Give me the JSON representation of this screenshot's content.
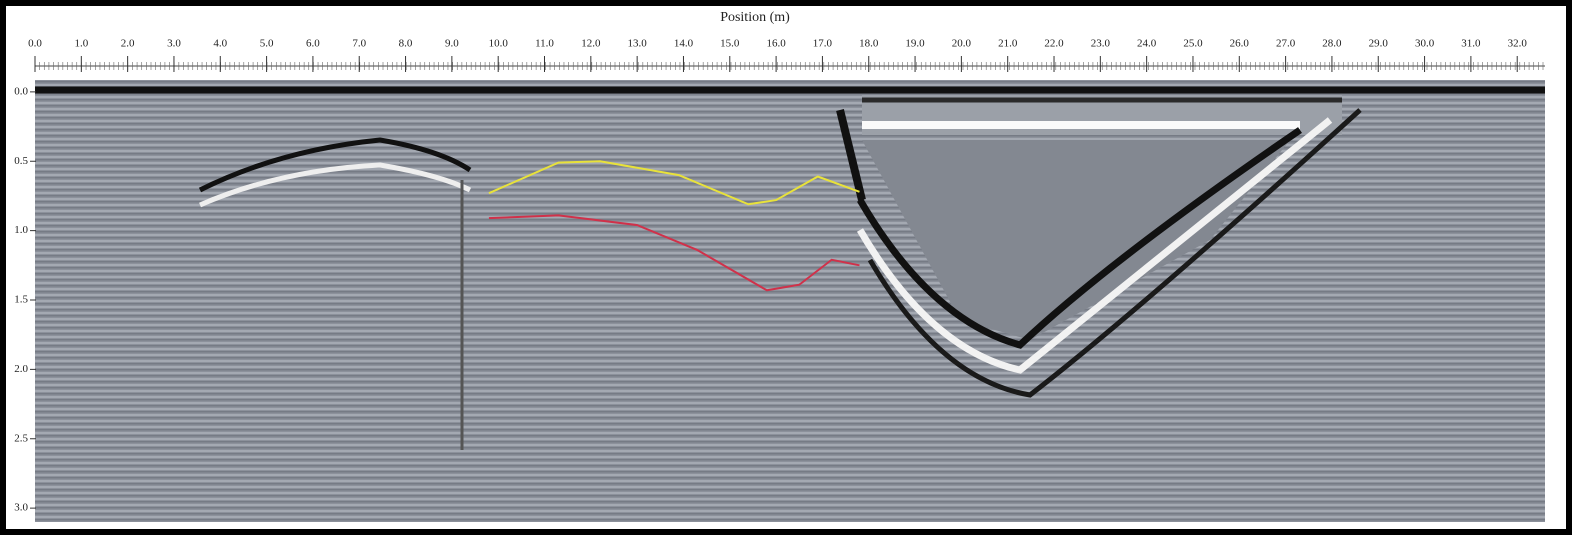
{
  "chart_data": {
    "type": "line",
    "title": "Position (m)",
    "xlim": [
      0,
      32.6
    ],
    "ylim": [
      -0.1,
      3.1
    ],
    "y_inverted": true,
    "xticks": [
      {
        "value": 0,
        "label": "0.0"
      },
      {
        "value": 1,
        "label": "1.0"
      },
      {
        "value": 2,
        "label": "2.0"
      },
      {
        "value": 3,
        "label": "3.0"
      },
      {
        "value": 4,
        "label": "4.0"
      },
      {
        "value": 5,
        "label": "5.0"
      },
      {
        "value": 6,
        "label": "6.0"
      },
      {
        "value": 7,
        "label": "7.0"
      },
      {
        "value": 8,
        "label": "8.0"
      },
      {
        "value": 9,
        "label": "9.0"
      },
      {
        "value": 10,
        "label": "10.0"
      },
      {
        "value": 11,
        "label": "11.0"
      },
      {
        "value": 12,
        "label": "12.0"
      },
      {
        "value": 13,
        "label": "13.0"
      },
      {
        "value": 14,
        "label": "14.0"
      },
      {
        "value": 15,
        "label": "15.0"
      },
      {
        "value": 16,
        "label": "16.0"
      },
      {
        "value": 17,
        "label": "17.0"
      },
      {
        "value": 18,
        "label": "18.0"
      },
      {
        "value": 19,
        "label": "19.0"
      },
      {
        "value": 20,
        "label": "20.0"
      },
      {
        "value": 21,
        "label": "21.0"
      },
      {
        "value": 22,
        "label": "22.0"
      },
      {
        "value": 23,
        "label": "23.0"
      },
      {
        "value": 24,
        "label": "24.0"
      },
      {
        "value": 25,
        "label": "25.0"
      },
      {
        "value": 26,
        "label": "26.0"
      },
      {
        "value": 27,
        "label": "27.0"
      },
      {
        "value": 28,
        "label": "28.0"
      },
      {
        "value": 29,
        "label": "29.0"
      },
      {
        "value": 30,
        "label": "30.0"
      },
      {
        "value": 31,
        "label": "31.0"
      },
      {
        "value": 32,
        "label": "32.0"
      }
    ],
    "yticks": [
      {
        "value": 0,
        "label": "0.0"
      },
      0.5,
      {
        "value": 1,
        "label": "1.0"
      },
      1.5,
      {
        "value": 2,
        "label": "2.0"
      },
      2.5,
      {
        "value": 3,
        "label": "3.0"
      }
    ],
    "series": [
      {
        "color": "#e8e23a",
        "x": [
          9.8,
          11.3,
          12.2,
          13.9,
          15.4,
          16.0,
          16.9,
          17.8
        ],
        "values": [
          0.73,
          0.51,
          0.5,
          0.6,
          0.81,
          0.78,
          0.61,
          0.72
        ]
      },
      {
        "color": "#d0314a",
        "x": [
          9.8,
          11.3,
          13.0,
          14.3,
          15.8,
          16.5,
          17.2,
          17.8
        ],
        "values": [
          0.91,
          0.89,
          0.96,
          1.14,
          1.43,
          1.39,
          1.21,
          1.25
        ]
      }
    ]
  }
}
